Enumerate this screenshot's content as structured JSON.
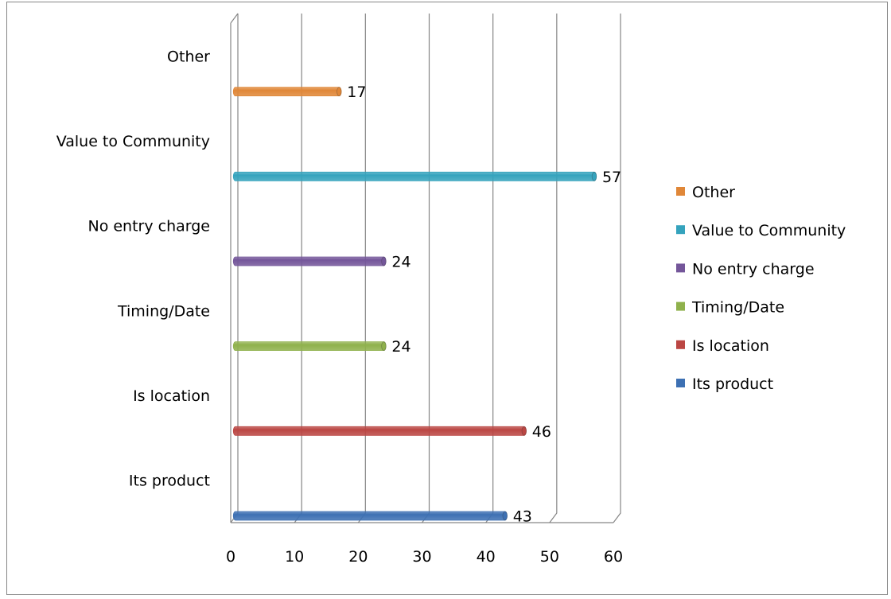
{
  "chart_data": {
    "type": "bar",
    "orientation": "horizontal",
    "style": "3d-cylinder",
    "categories": [
      "Its product",
      "Is location",
      "Timing/Date",
      "No entry charge",
      "Value to Community",
      "Other"
    ],
    "series": [
      {
        "name": "Its product",
        "category": "Its product",
        "value": 43,
        "color": "#3d70b3"
      },
      {
        "name": "Is location",
        "category": "Is location",
        "value": 46,
        "color": "#bb4643"
      },
      {
        "name": "Timing/Date",
        "category": "Timing/Date",
        "value": 24,
        "color": "#8fb14c"
      },
      {
        "name": "No entry charge",
        "category": "No entry charge",
        "value": 24,
        "color": "#74569a"
      },
      {
        "name": "Value to Community",
        "category": "Value to Community",
        "value": 57,
        "color": "#35a3bd"
      },
      {
        "name": "Other",
        "category": "Other",
        "value": 17,
        "color": "#e08738"
      }
    ],
    "xlim": [
      0,
      60
    ],
    "xticks": [
      0,
      10,
      20,
      30,
      40,
      50,
      60
    ],
    "grid": true,
    "data_labels": true,
    "legend_position": "right",
    "legend_order": [
      "Other",
      "Value to Community",
      "No entry charge",
      "Timing/Date",
      "Is location",
      "Its product"
    ]
  }
}
